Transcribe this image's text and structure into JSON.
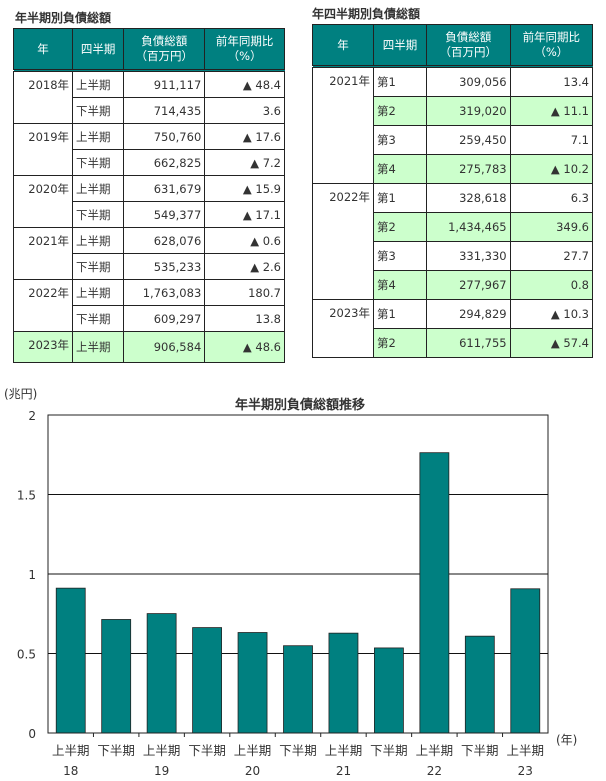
{
  "table1": {
    "title": "年半期別負債総額",
    "headers": [
      "年",
      "四半期",
      "負債総額\n（百万円）",
      "前年同期比\n（%）"
    ],
    "rows": [
      {
        "year": "2018年",
        "period": "上半期",
        "amount": "911,117",
        "ratio": "▲ 48.4"
      },
      {
        "year": "",
        "period": "下半期",
        "amount": "714,435",
        "ratio": "3.6"
      },
      {
        "year": "2019年",
        "period": "上半期",
        "amount": "750,760",
        "ratio": "▲ 17.6"
      },
      {
        "year": "",
        "period": "下半期",
        "amount": "662,825",
        "ratio": "▲ 7.2"
      },
      {
        "year": "2020年",
        "period": "上半期",
        "amount": "631,679",
        "ratio": "▲ 15.9"
      },
      {
        "year": "",
        "period": "下半期",
        "amount": "549,377",
        "ratio": "▲ 17.1"
      },
      {
        "year": "2021年",
        "period": "上半期",
        "amount": "628,076",
        "ratio": "▲ 0.6"
      },
      {
        "year": "",
        "period": "下半期",
        "amount": "535,233",
        "ratio": "▲ 2.6"
      },
      {
        "year": "2022年",
        "period": "上半期",
        "amount": "1,763,083",
        "ratio": "180.7"
      },
      {
        "year": "",
        "period": "下半期",
        "amount": "609,297",
        "ratio": "13.8"
      },
      {
        "year": "2023年",
        "period": "上半期",
        "amount": "906,584",
        "ratio": "▲ 48.6"
      }
    ]
  },
  "table2": {
    "title": "年四半期別負債総額",
    "headers": [
      "年",
      "四半期",
      "負債総額\n（百万円）",
      "前年同期比\n（%）"
    ],
    "rows": [
      {
        "year": "2021年",
        "period": "第1",
        "amount": "309,056",
        "ratio": "13.4"
      },
      {
        "year": "",
        "period": "第2",
        "amount": "319,020",
        "ratio": "▲ 11.1"
      },
      {
        "year": "",
        "period": "第3",
        "amount": "259,450",
        "ratio": "7.1"
      },
      {
        "year": "",
        "period": "第4",
        "amount": "275,783",
        "ratio": "▲ 10.2"
      },
      {
        "year": "2022年",
        "period": "第1",
        "amount": "328,618",
        "ratio": "6.3"
      },
      {
        "year": "",
        "period": "第2",
        "amount": "1,434,465",
        "ratio": "349.6"
      },
      {
        "year": "",
        "period": "第3",
        "amount": "331,330",
        "ratio": "27.7"
      },
      {
        "year": "",
        "period": "第4",
        "amount": "277,967",
        "ratio": "0.8"
      },
      {
        "year": "2023年",
        "period": "第1",
        "amount": "294,829",
        "ratio": "▲ 10.3"
      },
      {
        "year": "",
        "period": "第2",
        "amount": "611,755",
        "ratio": "▲ 57.4"
      }
    ]
  },
  "chart_data": {
    "type": "bar",
    "title": "年半期別負債総額推移",
    "ylabel": "(兆円)",
    "xlabel": "(年)",
    "ylim": [
      0,
      2
    ],
    "yticks": [
      "0",
      "0.5",
      "1",
      "1.5",
      "2"
    ],
    "categories": [
      "上半期",
      "下半期",
      "上半期",
      "下半期",
      "上半期",
      "下半期",
      "上半期",
      "下半期",
      "上半期",
      "下半期",
      "上半期"
    ],
    "year_labels": [
      "18",
      "",
      "19",
      "",
      "20",
      "",
      "21",
      "",
      "22",
      "",
      "23"
    ],
    "values": [
      0.911,
      0.714,
      0.751,
      0.663,
      0.632,
      0.549,
      0.628,
      0.535,
      1.763,
      0.609,
      0.907
    ],
    "bar_color": "#008080",
    "grid": true
  }
}
